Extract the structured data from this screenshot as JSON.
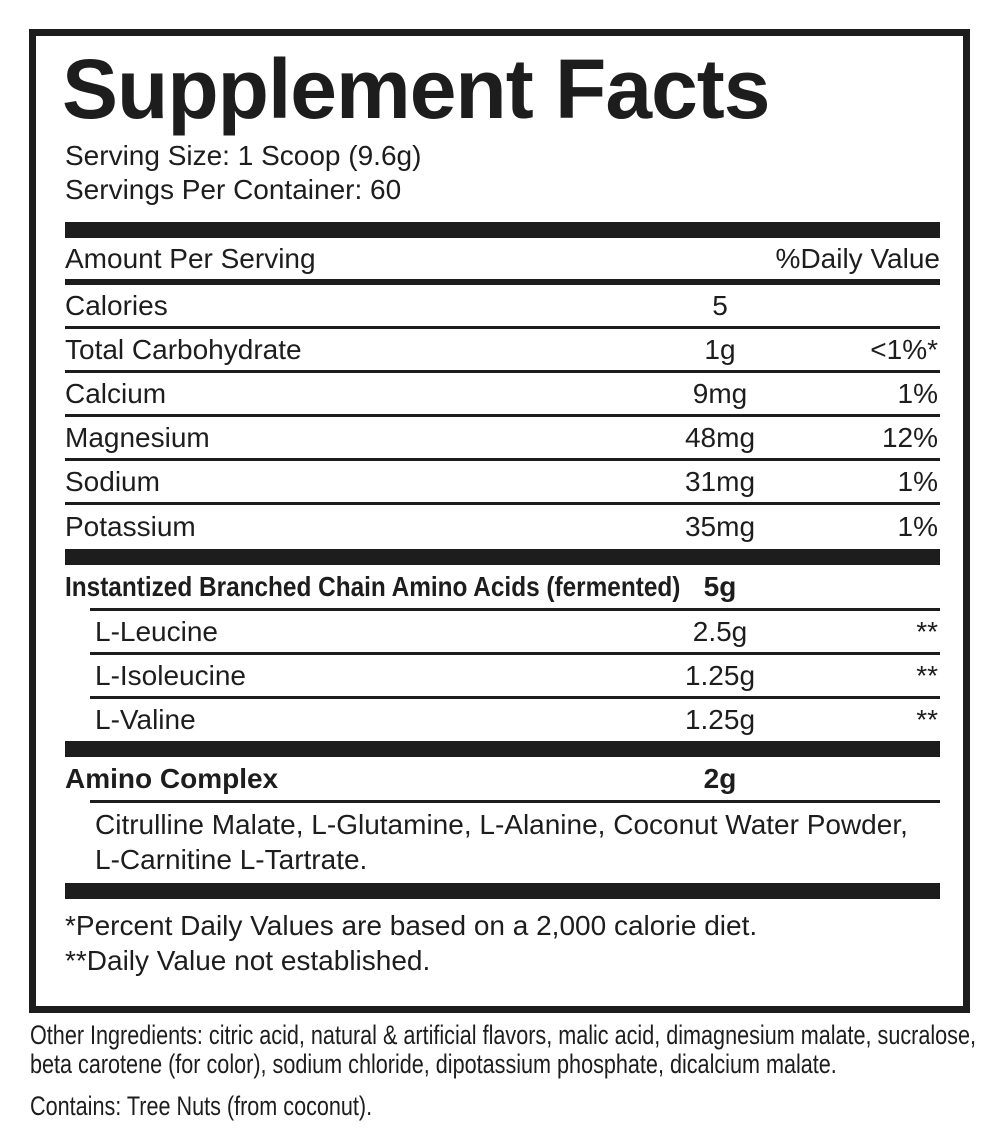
{
  "colors": {
    "ink": "#1d1d1d",
    "background": "#ffffff"
  },
  "label": {
    "title": "Supplement Facts",
    "serving_size": "Serving Size: 1 Scoop (9.6g)",
    "servings_per_container": "Servings Per Container: 60",
    "columns": {
      "amount": "Amount Per Serving",
      "daily_value": "%Daily Value"
    },
    "nutrients": [
      {
        "name": "Calories",
        "amount": "5",
        "dv": ""
      },
      {
        "name": "Total Carbohydrate",
        "amount": "1g",
        "dv": "<1%*"
      },
      {
        "name": "Calcium",
        "amount": "9mg",
        "dv": "1%"
      },
      {
        "name": "Magnesium",
        "amount": "48mg",
        "dv": "12%"
      },
      {
        "name": "Sodium",
        "amount": "31mg",
        "dv": "1%"
      },
      {
        "name": "Potassium",
        "amount": "35mg",
        "dv": "1%"
      }
    ],
    "bcaa": {
      "name": "Instantized Branched Chain Amino Acids (fermented)",
      "amount": "5g",
      "sub": [
        {
          "name": "L-Leucine",
          "amount": "2.5g",
          "dv": "**"
        },
        {
          "name": "L-Isoleucine",
          "amount": "1.25g",
          "dv": "**"
        },
        {
          "name": "L-Valine",
          "amount": "1.25g",
          "dv": "**"
        }
      ]
    },
    "amino_complex": {
      "name": "Amino Complex",
      "amount": "2g",
      "description_lines": [
        "Citrulline Malate, L-Glutamine, L-Alanine, Coconut Water Powder,",
        "L-Carnitine L-Tartrate."
      ]
    },
    "footnotes": [
      "*Percent Daily Values are based on a 2,000 calorie diet.",
      "**Daily Value not established."
    ]
  },
  "below_label": {
    "other_ingredients_lines": [
      "Other Ingredients: citric acid, natural & artificial flavors, malic acid, dimagnesium malate, sucralose,",
      "beta carotene (for color), sodium chloride, dipotassium phosphate, dicalcium malate."
    ],
    "contains": "Contains: Tree Nuts (from coconut)."
  }
}
